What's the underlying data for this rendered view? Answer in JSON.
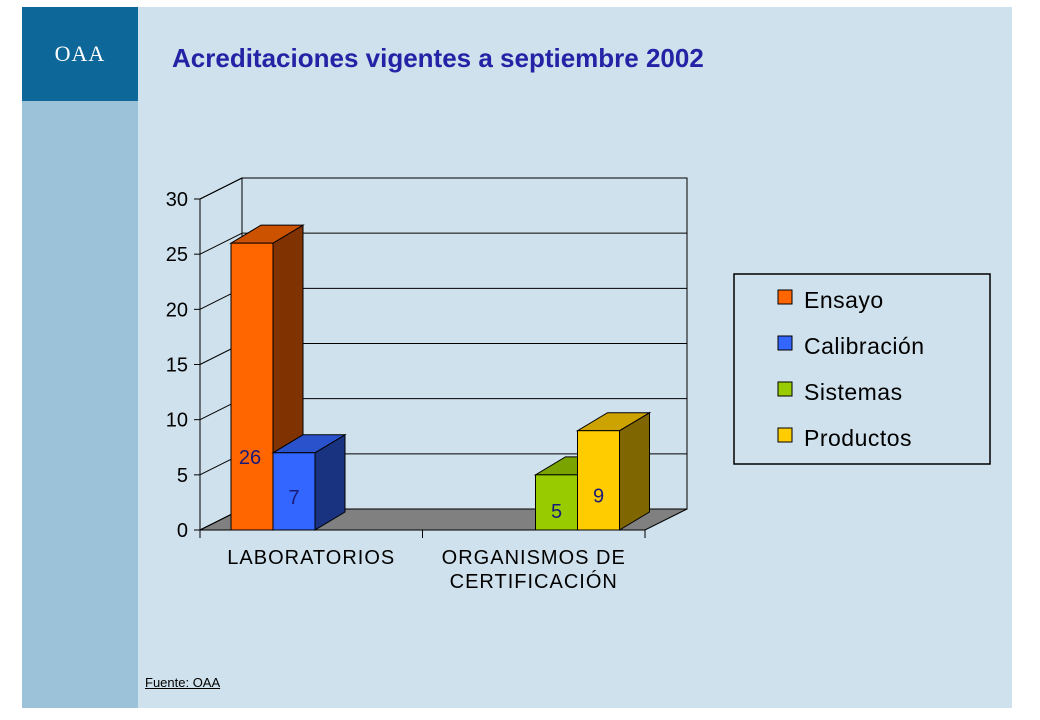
{
  "logo": {
    "text": "OAA"
  },
  "title": "Acreditaciones vigentes a septiembre 2002",
  "source": "Fuente:  OAA",
  "colors": {
    "background": "#cfe1ec",
    "sidebar": "#9bc2d8",
    "logo_block": "#0d6798",
    "title": "#2323a6"
  },
  "chart_data": {
    "type": "bar",
    "style": "3d-clustered-column",
    "categories": [
      "LABORATORIOS",
      "ORGANISMOS DE CERTIFICACIÓN"
    ],
    "ylim": [
      0,
      30
    ],
    "yticks": [
      0,
      5,
      10,
      15,
      20,
      25,
      30
    ],
    "grid": true,
    "legend_position": "right",
    "series": [
      {
        "name": "Ensayo",
        "color": "#ff6600",
        "values": [
          26,
          null
        ]
      },
      {
        "name": "Calibración",
        "color": "#3366ff",
        "values": [
          7,
          null
        ]
      },
      {
        "name": "Sistemas",
        "color": "#99cc00",
        "values": [
          null,
          5
        ]
      },
      {
        "name": "Productos",
        "color": "#ffcc00",
        "values": [
          null,
          9
        ]
      }
    ],
    "data_labels": [
      {
        "series": "Ensayo",
        "category": "LABORATORIOS",
        "text": "26"
      },
      {
        "series": "Calibración",
        "category": "LABORATORIOS",
        "text": "7"
      },
      {
        "series": "Sistemas",
        "category": "ORGANISMOS DE CERTIFICACIÓN",
        "text": "5"
      },
      {
        "series": "Productos",
        "category": "ORGANISMOS DE CERTIFICACIÓN",
        "text": "9"
      }
    ],
    "xlabel": "",
    "ylabel": ""
  }
}
